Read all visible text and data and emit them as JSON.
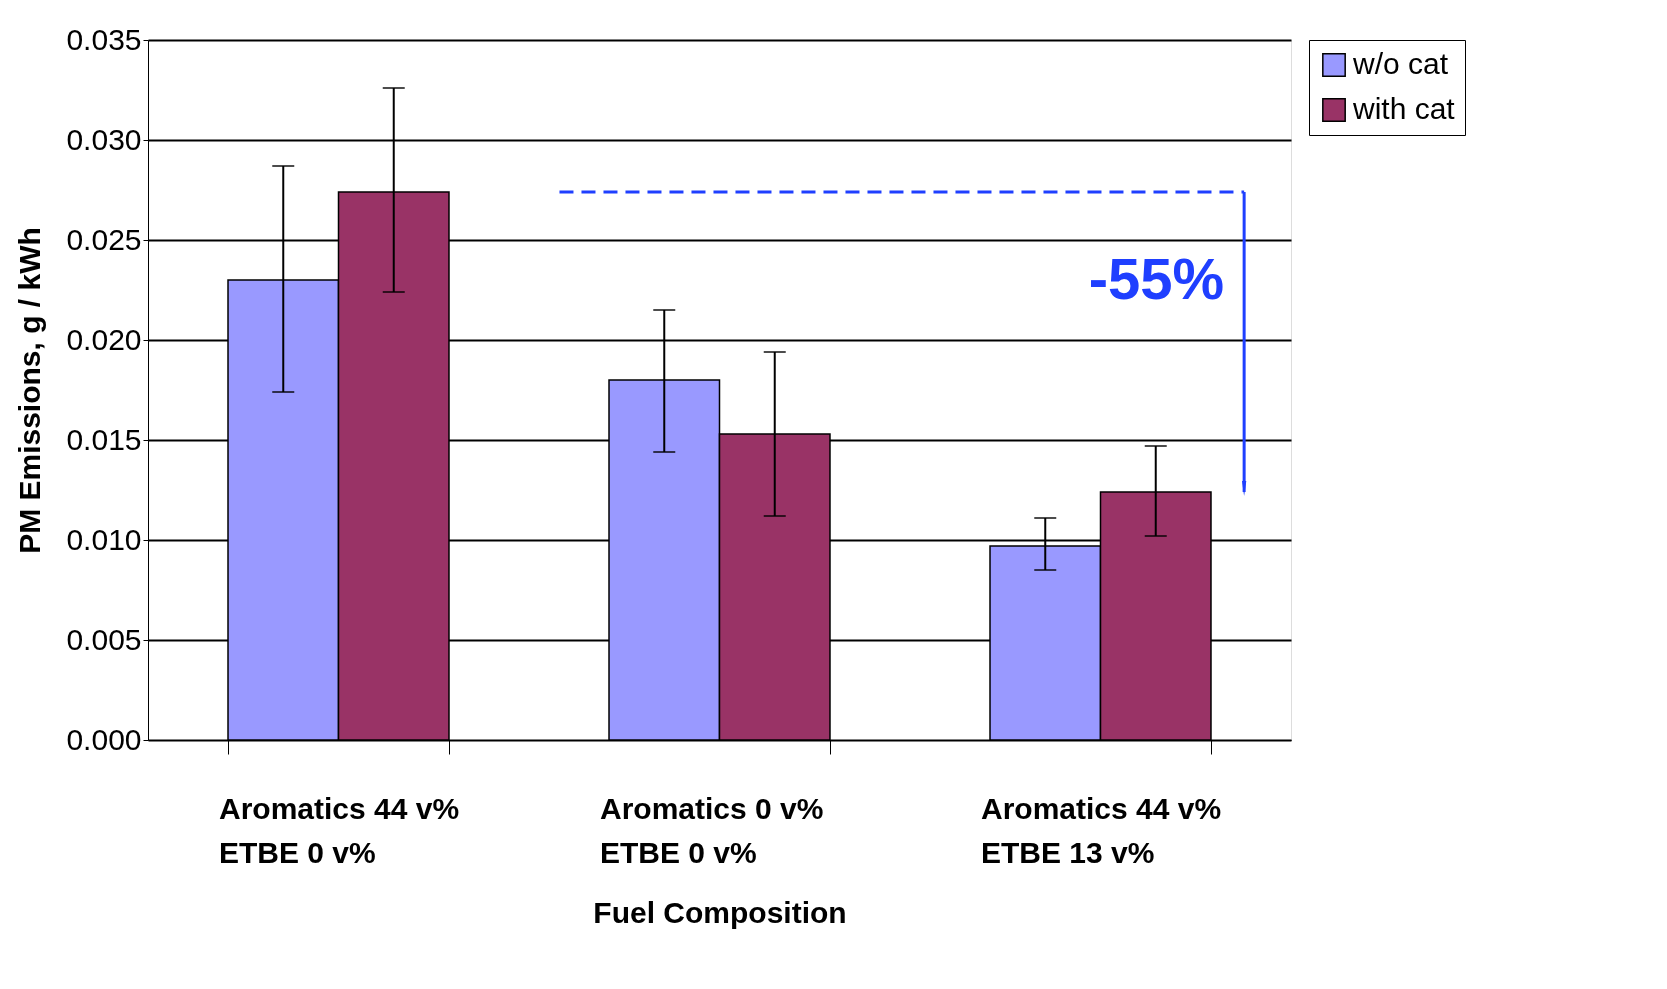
{
  "chart_data": {
    "type": "bar",
    "xlabel": "Fuel Composition",
    "ylabel": "PM Emissions,   g / kWh",
    "categories": [
      "Aromatics   44 v%\nETBE             0 v%",
      "Aromatics     0  v%\nETBE             0  v%",
      "Aromatics   44 v%\nETBE           13 v%"
    ],
    "series": [
      {
        "name": "w/o cat",
        "color": "#9999ff",
        "values": [
          0.023,
          0.018,
          0.0097
        ],
        "errors": [
          [
            0.0174,
            0.0287
          ],
          [
            0.0144,
            0.0215
          ],
          [
            0.0085,
            0.0111
          ]
        ]
      },
      {
        "name": "with cat",
        "color": "#993366",
        "values": [
          0.0274,
          0.0153,
          0.0124
        ],
        "errors": [
          [
            0.0224,
            0.0326
          ],
          [
            0.0112,
            0.0194
          ],
          [
            0.0102,
            0.0147
          ]
        ]
      }
    ],
    "ylim": [
      0,
      0.035
    ],
    "yticks": [
      {
        "value": 0,
        "label": "0.000"
      },
      {
        "value": 0.005,
        "label": "0.005"
      },
      {
        "value": 0.01,
        "label": "0.010"
      },
      {
        "value": 0.015,
        "label": "0.015"
      },
      {
        "value": 0.02,
        "label": "0.020"
      },
      {
        "value": 0.025,
        "label": "0.025"
      },
      {
        "value": 0.03,
        "label": "0.030"
      },
      {
        "value": 0.035,
        "label": "0.035"
      }
    ],
    "grid": "y",
    "legend": "right",
    "annotations": [
      "-55%"
    ]
  }
}
